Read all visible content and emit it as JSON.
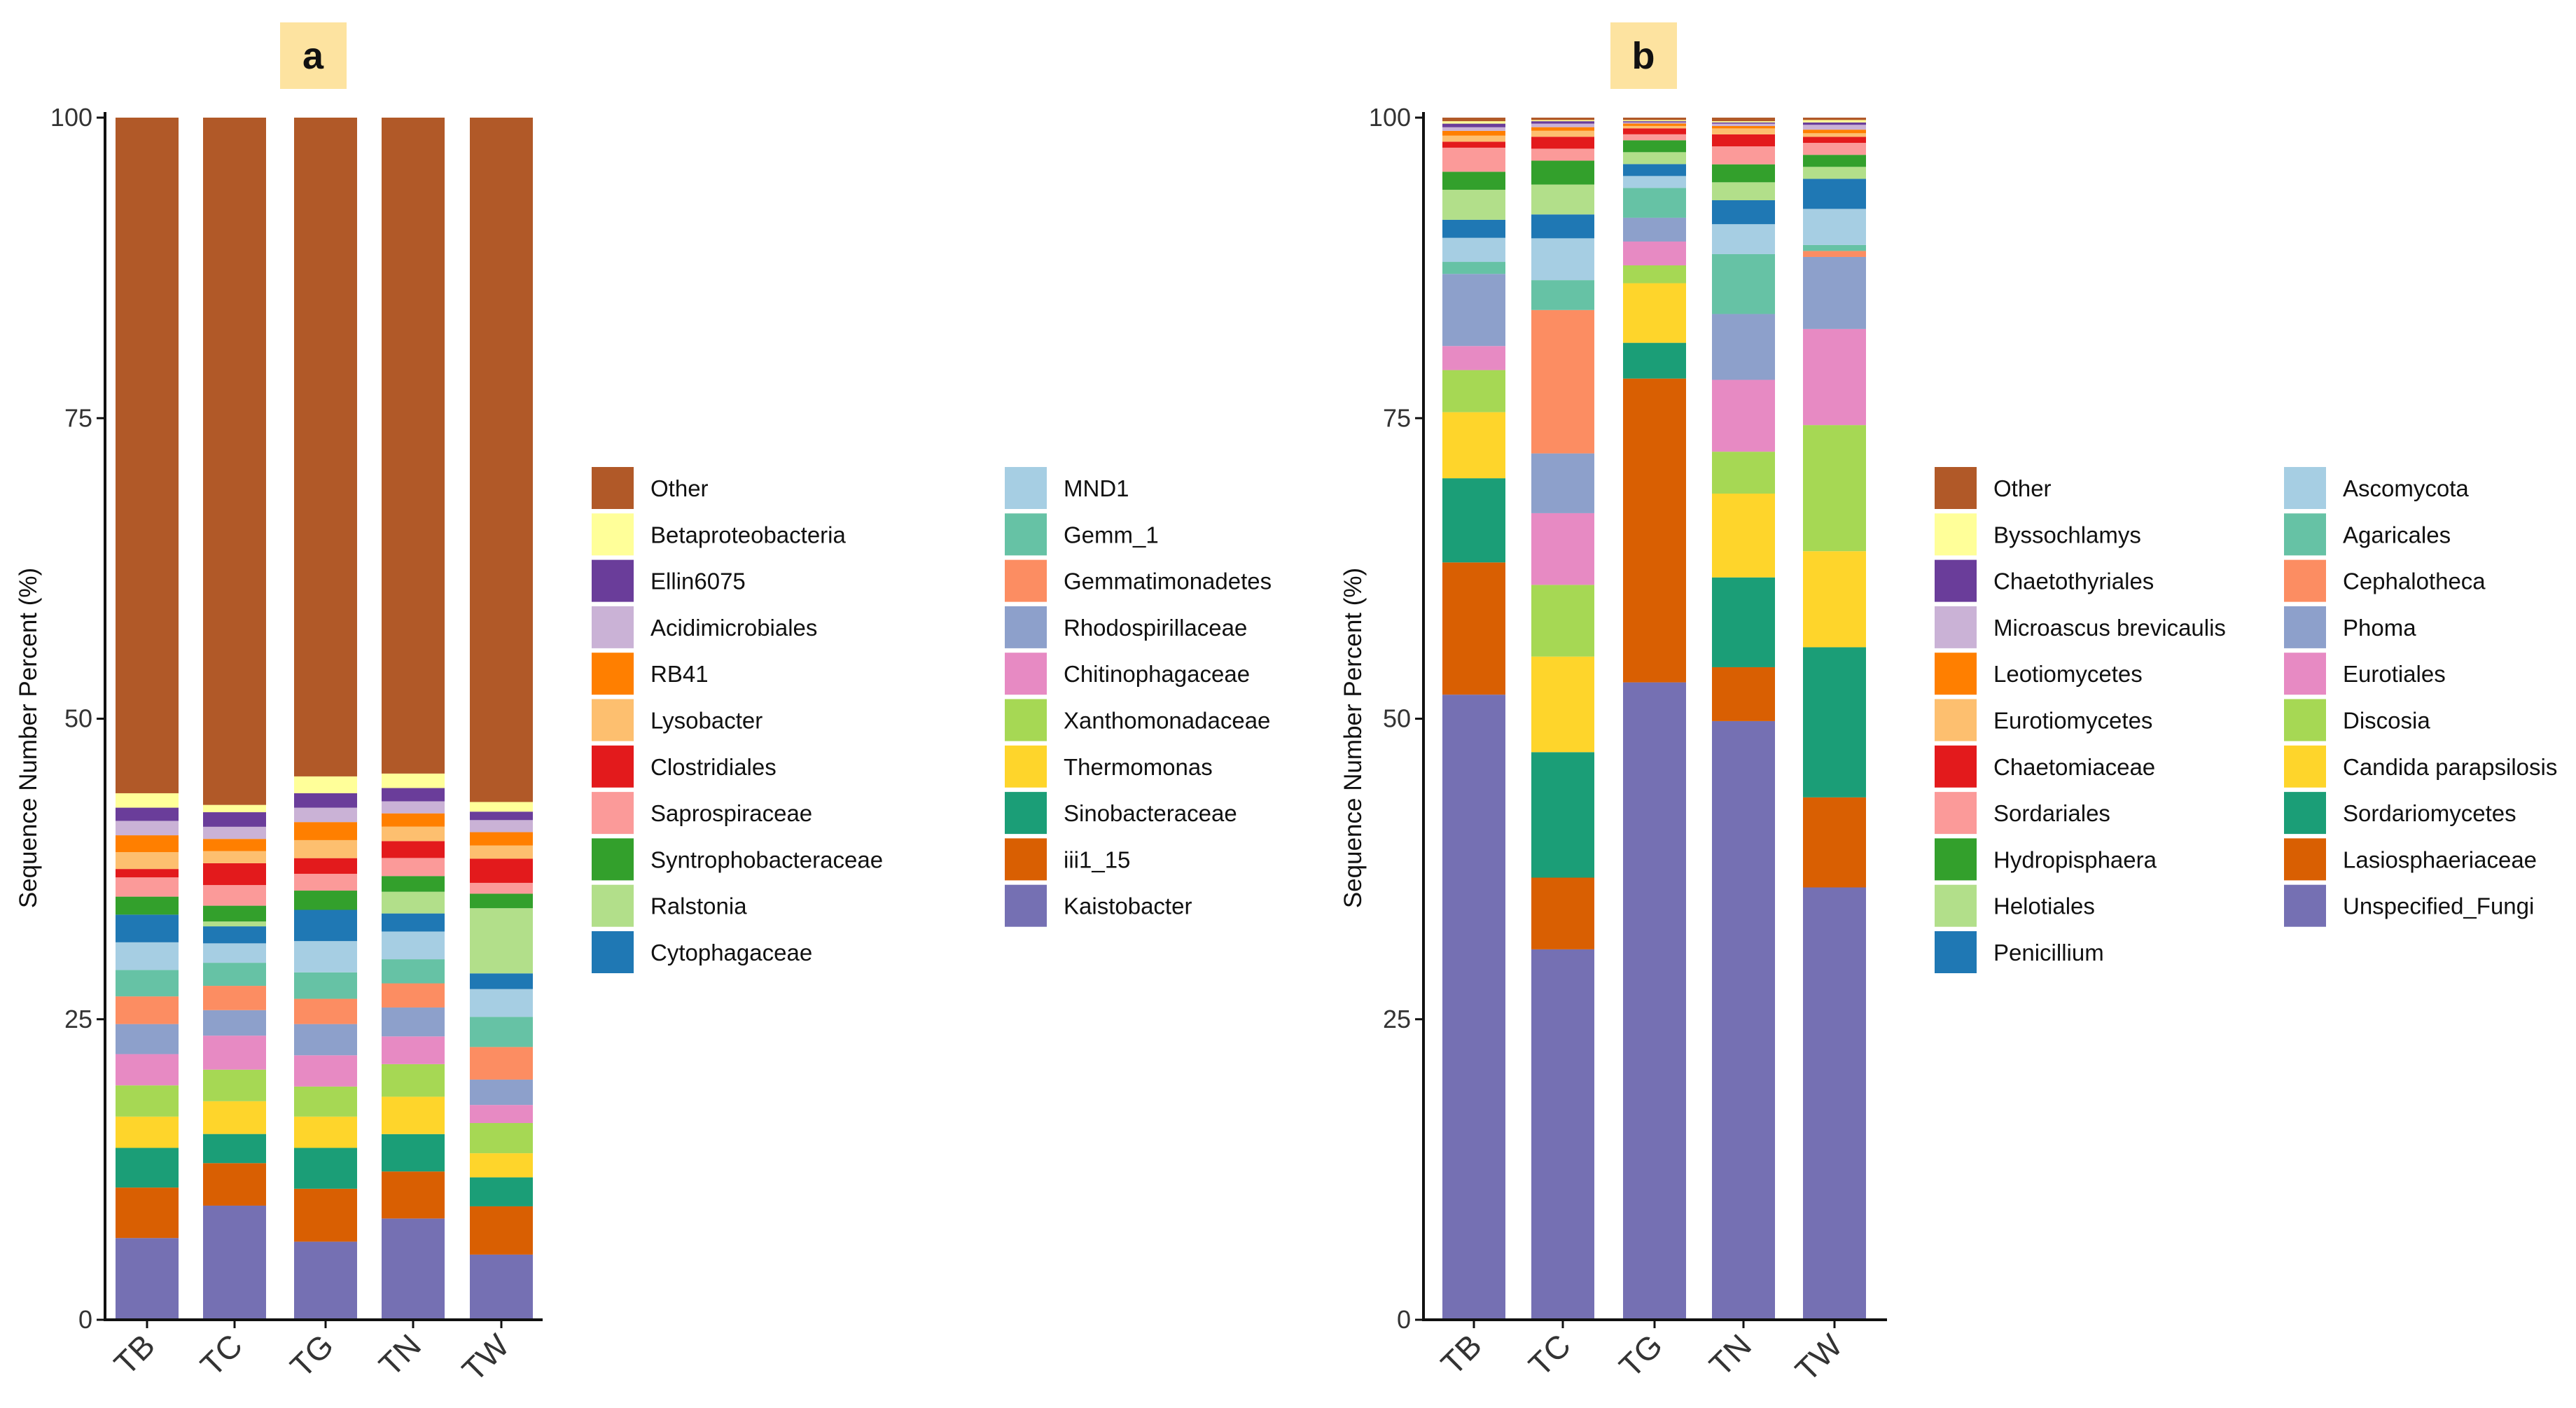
{
  "chart_data": [
    {
      "type": "bar",
      "stacked": true,
      "panel_label": "a",
      "ylabel": "Sequence Number Percent (%)",
      "ylim": [
        0,
        100
      ],
      "yticks": [
        "0",
        "25",
        "50",
        "75",
        "100"
      ],
      "categories": [
        "TB",
        "TC",
        "TG",
        "TN",
        "TW"
      ],
      "series": [
        {
          "name": "Kaistobacter",
          "color": "#7570b3",
          "values": [
            6.8,
            9.4,
            6.5,
            8.4,
            5.4
          ]
        },
        {
          "name": "iii1_15",
          "color": "#d95f02",
          "values": [
            4.2,
            3.5,
            4.4,
            3.9,
            4.0
          ]
        },
        {
          "name": "Sinobacteraceae",
          "color": "#1b9e77",
          "values": [
            3.3,
            2.4,
            3.4,
            3.1,
            2.4
          ]
        },
        {
          "name": "Thermomonas",
          "color": "#fed52b",
          "values": [
            2.6,
            2.7,
            2.6,
            3.1,
            2.0
          ]
        },
        {
          "name": "Xanthomonadaceae",
          "color": "#a6d854",
          "values": [
            2.6,
            2.6,
            2.5,
            2.7,
            2.5
          ]
        },
        {
          "name": "Chitinophagaceae",
          "color": "#e78ac3",
          "values": [
            2.6,
            2.8,
            2.6,
            2.3,
            1.5
          ]
        },
        {
          "name": "Rhodospirillaceae",
          "color": "#8da0cb",
          "values": [
            2.5,
            2.1,
            2.6,
            2.4,
            2.1
          ]
        },
        {
          "name": "Gemmatimonadetes",
          "color": "#fc8d62",
          "values": [
            2.3,
            2.0,
            2.1,
            2.0,
            2.7
          ]
        },
        {
          "name": "Gemm_1",
          "color": "#66c2a5",
          "values": [
            2.2,
            1.9,
            2.2,
            2.0,
            2.5
          ]
        },
        {
          "name": "MND1",
          "color": "#a6cee3",
          "values": [
            2.3,
            1.6,
            2.6,
            2.3,
            2.3
          ]
        },
        {
          "name": "Cytophagaceae",
          "color": "#1f78b4",
          "values": [
            2.3,
            1.4,
            2.6,
            1.5,
            1.3
          ]
        },
        {
          "name": "Ralstonia",
          "color": "#b2df8a",
          "values": [
            0.0,
            0.4,
            0.0,
            1.8,
            5.4
          ]
        },
        {
          "name": "Syntrophobacteraceae",
          "color": "#33a02c",
          "values": [
            1.5,
            1.3,
            1.6,
            1.3,
            1.2
          ]
        },
        {
          "name": "Saprospiraceae",
          "color": "#fb9a99",
          "values": [
            1.6,
            1.7,
            1.4,
            1.5,
            0.9
          ]
        },
        {
          "name": "Clostridiales",
          "color": "#e31a1c",
          "values": [
            0.7,
            1.8,
            1.3,
            1.4,
            2.0
          ]
        },
        {
          "name": "Lysobacter",
          "color": "#fdbf6f",
          "values": [
            1.4,
            1.0,
            1.5,
            1.2,
            1.1
          ]
        },
        {
          "name": "RB41",
          "color": "#ff7f00",
          "values": [
            1.4,
            1.0,
            1.5,
            1.1,
            1.1
          ]
        },
        {
          "name": "Acidimicrobiales",
          "color": "#cab2d6",
          "values": [
            1.2,
            1.0,
            1.2,
            1.0,
            1.0
          ]
        },
        {
          "name": "Ellin6075",
          "color": "#6a3d9a",
          "values": [
            1.1,
            1.2,
            1.2,
            1.1,
            0.7
          ]
        },
        {
          "name": "Betaproteobacteria",
          "color": "#ffff99",
          "values": [
            1.2,
            0.6,
            1.4,
            1.2,
            0.8
          ]
        },
        {
          "name": "Other",
          "color": "#b15928",
          "values": [
            56.2,
            56.6,
            54.8,
            54.4,
            56.7
          ]
        }
      ],
      "legend_title": ""
    },
    {
      "type": "bar",
      "stacked": true,
      "panel_label": "b",
      "ylabel": "Sequence Number Percent (%)",
      "ylim": [
        0,
        100
      ],
      "yticks": [
        "0",
        "25",
        "50",
        "75",
        "100"
      ],
      "categories": [
        "TB",
        "TC",
        "TG",
        "TN",
        "TW"
      ],
      "series": [
        {
          "name": "Unspecified_Fungi",
          "color": "#7570b3",
          "values": [
            52.0,
            31.0,
            53.5,
            50.0,
            36.0
          ]
        },
        {
          "name": "Lasiosphaeriaceae",
          "color": "#d95f02",
          "values": [
            11.0,
            6.0,
            25.5,
            4.5,
            7.5
          ]
        },
        {
          "name": "Sordariomycetes",
          "color": "#1b9e77",
          "values": [
            7.0,
            10.5,
            3.0,
            7.5,
            12.5
          ]
        },
        {
          "name": "Candida parapsilosis",
          "color": "#fed52b",
          "values": [
            5.5,
            8.0,
            5.0,
            7.0,
            8.0
          ]
        },
        {
          "name": "Discosia",
          "color": "#a6d854",
          "values": [
            3.5,
            6.0,
            1.5,
            3.5,
            10.5
          ]
        },
        {
          "name": "Eurotiales",
          "color": "#e78ac3",
          "values": [
            2.0,
            6.0,
            2.0,
            6.0,
            8.0
          ]
        },
        {
          "name": "Phoma",
          "color": "#8da0cb",
          "values": [
            6.0,
            5.0,
            2.0,
            5.5,
            6.0
          ]
        },
        {
          "name": "Cephalotheca",
          "color": "#fc8d62",
          "values": [
            0.0,
            12.0,
            0.0,
            0.0,
            0.5
          ]
        },
        {
          "name": "Agaricales",
          "color": "#66c2a5",
          "values": [
            1.0,
            2.5,
            2.5,
            5.0,
            0.5
          ]
        },
        {
          "name": "Ascomycota",
          "color": "#a6cee3",
          "values": [
            2.0,
            3.5,
            1.0,
            2.5,
            3.0
          ]
        },
        {
          "name": "Penicillium",
          "color": "#1f78b4",
          "values": [
            1.5,
            2.0,
            1.0,
            2.0,
            2.5
          ]
        },
        {
          "name": "Helotiales",
          "color": "#b2df8a",
          "values": [
            2.5,
            2.5,
            1.0,
            1.5,
            1.0
          ]
        },
        {
          "name": "Hydropisphaera",
          "color": "#33a02c",
          "values": [
            1.5,
            2.0,
            1.0,
            1.5,
            1.0
          ]
        },
        {
          "name": "Sordariales",
          "color": "#fb9a99",
          "values": [
            2.0,
            1.0,
            0.5,
            1.5,
            1.0
          ]
        },
        {
          "name": "Chaetomiaceae",
          "color": "#e31a1c",
          "values": [
            0.5,
            1.0,
            0.5,
            1.0,
            0.5
          ]
        },
        {
          "name": "Eurotiomycetes",
          "color": "#fdbf6f",
          "values": [
            0.5,
            0.5,
            0.2,
            0.5,
            0.3
          ]
        },
        {
          "name": "Leotiomycetes",
          "color": "#ff7f00",
          "values": [
            0.4,
            0.3,
            0.2,
            0.2,
            0.3
          ]
        },
        {
          "name": "Microascus brevicaulis",
          "color": "#cab2d6",
          "values": [
            0.3,
            0.3,
            0.1,
            0.2,
            0.4
          ]
        },
        {
          "name": "Chaetothyriales",
          "color": "#6a3d9a",
          "values": [
            0.3,
            0.2,
            0.1,
            0.1,
            0.2
          ]
        },
        {
          "name": "Byssochlamys",
          "color": "#ffff99",
          "values": [
            0.2,
            0.1,
            0.1,
            0.1,
            0.2
          ]
        },
        {
          "name": "Other",
          "color": "#b15928",
          "values": [
            0.3,
            0.2,
            0.2,
            0.3,
            0.2
          ]
        }
      ],
      "legend_title": ""
    }
  ],
  "legends": [
    {
      "col1": [
        "Other",
        "Betaproteobacteria",
        "Ellin6075",
        "Acidimicrobiales",
        "RB41",
        "Lysobacter",
        "Clostridiales",
        "Saprospiraceae",
        "Syntrophobacteraceae",
        "Ralstonia",
        "Cytophagaceae"
      ],
      "col2": [
        "MND1",
        "Gemm_1",
        "Gemmatimonadetes",
        "Rhodospirillaceae",
        "Chitinophagaceae",
        "Xanthomonadaceae",
        "Thermomonas",
        "Sinobacteraceae",
        "iii1_15",
        "Kaistobacter"
      ]
    },
    {
      "col1": [
        "Other",
        "Byssochlamys",
        "Chaetothyriales",
        "Microascus brevicaulis",
        "Leotiomycetes",
        "Eurotiomycetes",
        "Chaetomiaceae",
        "Sordariales",
        "Hydropisphaera",
        "Helotiales",
        "Penicillium"
      ],
      "col2": [
        "Ascomycota",
        "Agaricales",
        "Cephalotheca",
        "Phoma",
        "Eurotiales",
        "Discosia",
        "Candida parapsilosis",
        "Sordariomycetes",
        "Lasiosphaeriaceae",
        "Unspecified_Fungi"
      ]
    }
  ]
}
